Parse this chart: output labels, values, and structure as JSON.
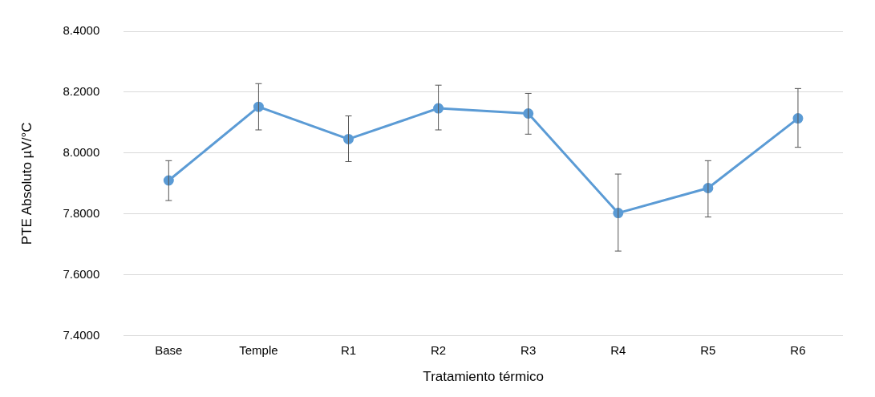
{
  "chart_data": {
    "type": "line",
    "xlabel": "Tratamiento térmico",
    "ylabel": "PTE Absoluto µV/°C",
    "categories": [
      "Base",
      "Temple",
      "R1",
      "R2",
      "R3",
      "R4",
      "R5",
      "R6"
    ],
    "series": [
      {
        "color": "#5b9bd5",
        "values": [
          7.91,
          8.152,
          8.046,
          8.147,
          8.13,
          7.803,
          7.885,
          8.114
        ],
        "errors": [
          [
            7.844,
            7.975
          ],
          [
            8.076,
            8.228
          ],
          [
            7.972,
            8.122
          ],
          [
            8.076,
            8.223
          ],
          [
            8.062,
            8.196
          ],
          [
            7.678,
            7.931
          ],
          [
            7.79,
            7.975
          ],
          [
            8.019,
            8.212
          ]
        ]
      }
    ],
    "ylim": [
      7.4,
      8.4
    ],
    "yticks": [
      {
        "value": 7.4,
        "label": "7.4000"
      },
      {
        "value": 7.6,
        "label": "7.6000"
      },
      {
        "value": 7.8,
        "label": "7.8000"
      },
      {
        "value": 8.0,
        "label": "8.0000"
      },
      {
        "value": 8.2,
        "label": "8.2000"
      },
      {
        "value": 8.4,
        "label": "8.4000"
      }
    ],
    "grid": "y",
    "legend": false,
    "marker": "circle",
    "line_style": "solid"
  }
}
